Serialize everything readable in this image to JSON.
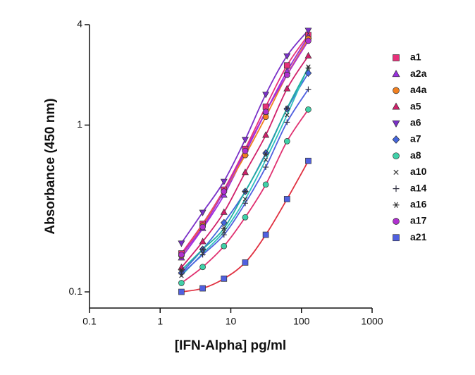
{
  "chart_data": {
    "type": "scatter",
    "x_label": "[IFN-Alpha] pg/ml",
    "y_label": "Absorbance (450 nm)",
    "x_log": true,
    "y_log": true,
    "xlim": [
      0.1,
      1000
    ],
    "xticks": [
      0.1,
      1,
      10,
      100,
      1000
    ],
    "ylim": [
      0.08,
      4
    ],
    "yticks": [
      0.1,
      1,
      4
    ],
    "legend": "right",
    "x": [
      2,
      4,
      8,
      16,
      31.25,
      62.5,
      125
    ],
    "series": [
      {
        "name": "a1",
        "color": "#e8307a",
        "line_color": "#e8307a",
        "marker": "square",
        "values": [
          0.17,
          0.256,
          0.41,
          0.72,
          1.29,
          2.28,
          3.47
        ]
      },
      {
        "name": "a2a",
        "color": "#9b30e0",
        "line_color": "#9b30e0",
        "marker": "triangle",
        "values": [
          0.16,
          0.24,
          0.38,
          0.68,
          1.2,
          2.1,
          3.4
        ]
      },
      {
        "name": "a4a",
        "color": "#f28020",
        "line_color": "#f28020",
        "marker": "circle",
        "values": [
          0.165,
          0.25,
          0.4,
          0.66,
          1.12,
          2.0,
          3.3
        ]
      },
      {
        "name": "a5",
        "color": "#d0206a",
        "line_color": "#d0206a",
        "marker": "triangle",
        "values": [
          0.14,
          0.2,
          0.3,
          0.52,
          0.87,
          1.65,
          2.6
        ]
      },
      {
        "name": "a6",
        "color": "#7a30c8",
        "line_color": "#7a30c8",
        "marker": "triangle-down",
        "values": [
          0.196,
          0.3,
          0.46,
          0.82,
          1.53,
          2.6,
          3.7
        ]
      },
      {
        "name": "a7",
        "color": "#4466dd",
        "line_color": "#4466dd",
        "marker": "diamond",
        "values": [
          0.13,
          0.18,
          0.26,
          0.4,
          0.68,
          1.25,
          2.05
        ]
      },
      {
        "name": "a8",
        "color": "#40d0a8",
        "line_color": "#e03070",
        "marker": "circle",
        "values": [
          0.113,
          0.141,
          0.188,
          0.28,
          0.44,
          0.8,
          1.24
        ]
      },
      {
        "name": "a10",
        "color": "#333333",
        "line_color": "#30c0c0",
        "marker": "x",
        "values": [
          0.125,
          0.17,
          0.23,
          0.36,
          0.62,
          1.15,
          2.24
        ]
      },
      {
        "name": "a14",
        "color": "#333344",
        "line_color": "#5060e0",
        "marker": "plus",
        "values": [
          0.128,
          0.167,
          0.22,
          0.34,
          0.56,
          1.04,
          1.64
        ]
      },
      {
        "name": "a16",
        "color": "#333333",
        "line_color": "#20b0a0",
        "marker": "asterisk",
        "values": [
          0.135,
          0.18,
          0.24,
          0.4,
          0.67,
          1.26,
          2.2
        ]
      },
      {
        "name": "a17",
        "color": "#b030d0",
        "line_color": "#b030d0",
        "marker": "circle",
        "values": [
          0.167,
          0.245,
          0.4,
          0.7,
          1.2,
          2.0,
          3.2
        ]
      },
      {
        "name": "a21",
        "color": "#5060e0",
        "line_color": "#e03040",
        "marker": "square",
        "values": [
          0.1,
          0.105,
          0.12,
          0.15,
          0.22,
          0.36,
          0.61
        ]
      }
    ]
  }
}
